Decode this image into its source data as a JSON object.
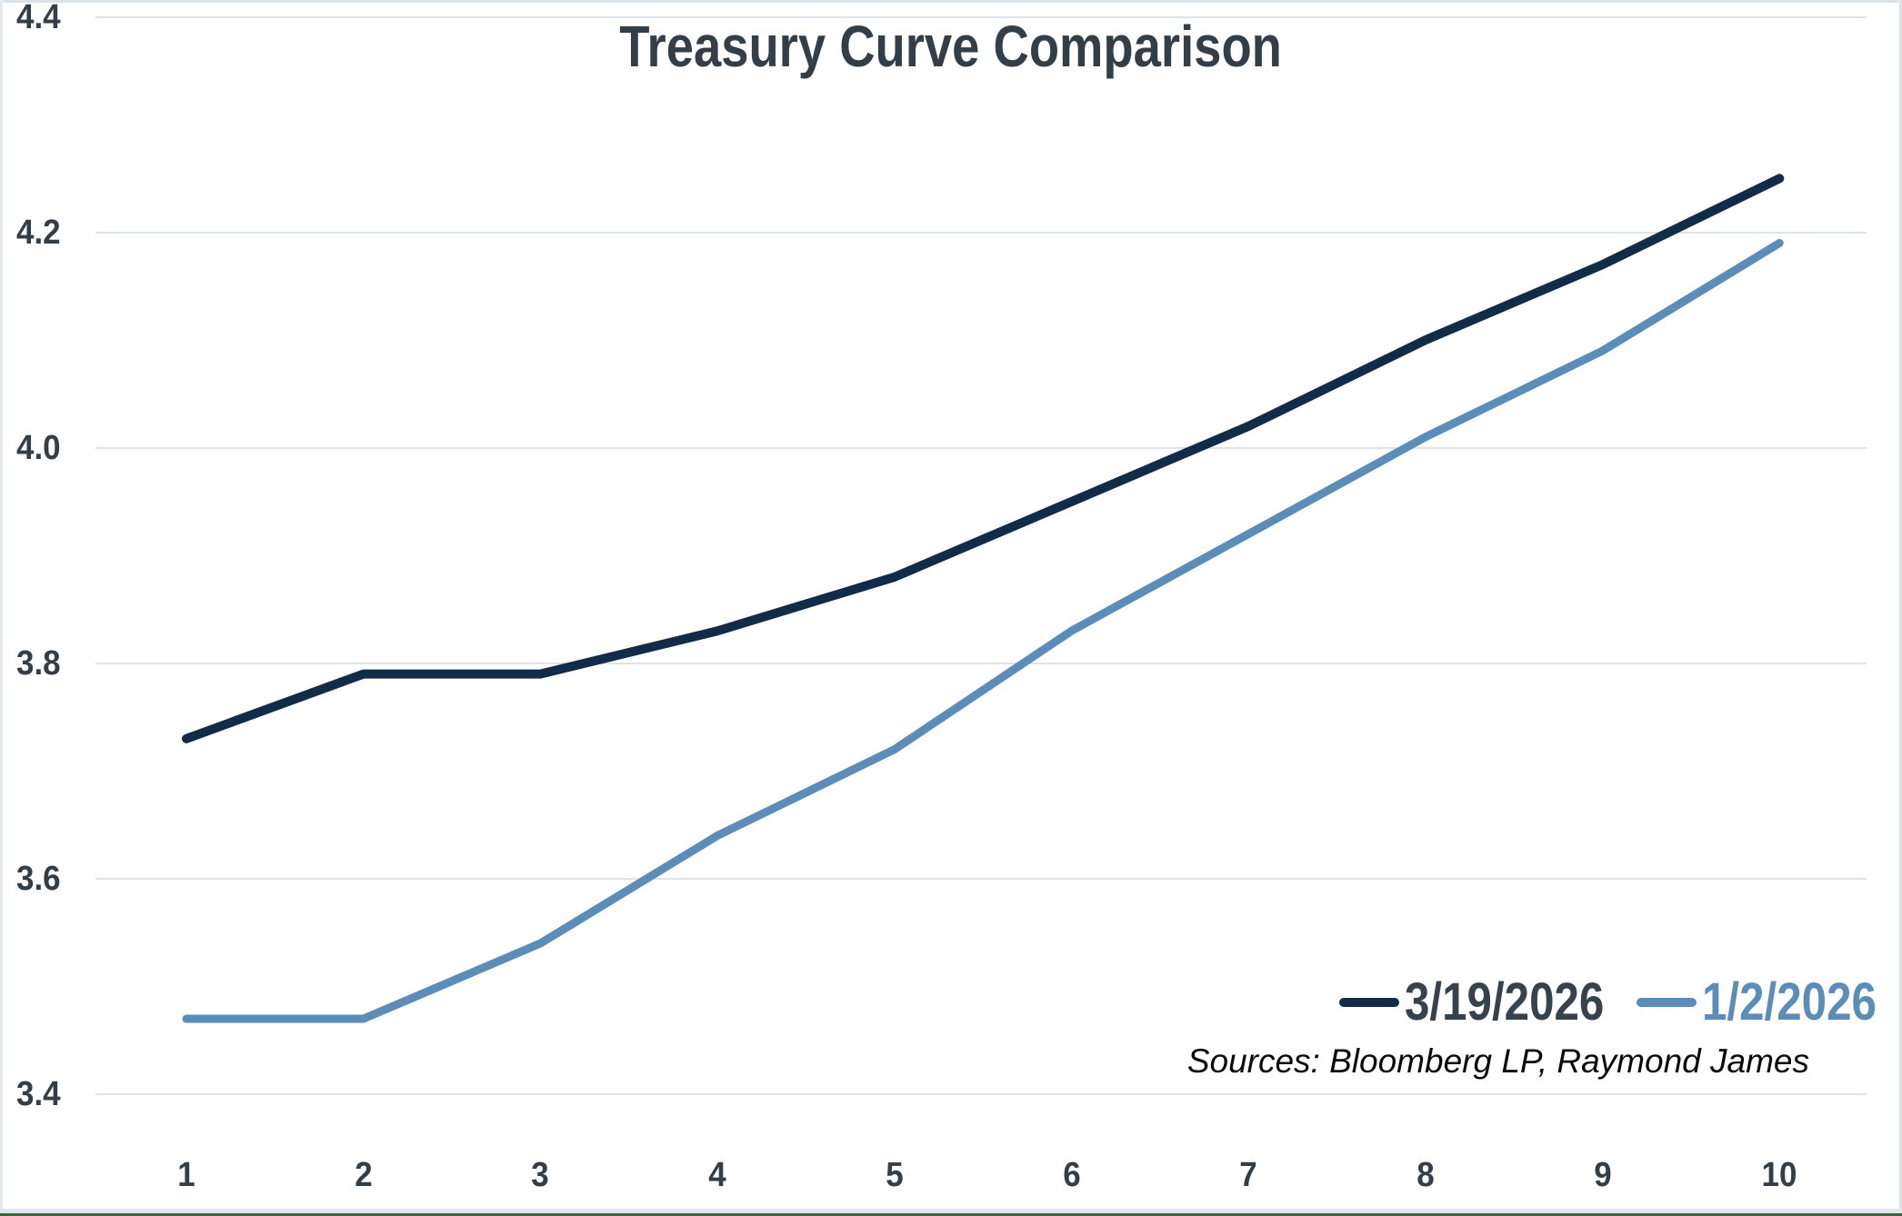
{
  "title": "Treasury Curve Comparison",
  "footer": {
    "sources": "Sources: Bloomberg LP, Raymond James"
  },
  "colors": {
    "background": "#FFFFFF",
    "title_text": "#333E46",
    "axis_text": "#333E46",
    "gridline": "#DDE3E7",
    "frame_border": "#DCE3E7",
    "bottom_accent": "#42603F",
    "series_dark": "#102C48",
    "series_blue": "#5B8DB8",
    "legend_dark_text": "#37424A",
    "legend_blue_text": "#5B8DB8"
  },
  "chart_data": {
    "type": "line",
    "title": "Treasury Curve Comparison",
    "xlabel": "",
    "ylabel": "",
    "categories": [
      "1",
      "2",
      "3",
      "4",
      "5",
      "6",
      "7",
      "8",
      "9",
      "10"
    ],
    "x": [
      1,
      2,
      3,
      4,
      5,
      6,
      7,
      8,
      9,
      10
    ],
    "ylim": [
      3.4,
      4.4
    ],
    "yticks": [
      "3.4",
      "3.6",
      "3.8",
      "4.0",
      "4.2",
      "4.4"
    ],
    "grid": "horizontal-only",
    "legend_position": "bottom-right",
    "series": [
      {
        "name": "3/19/2026",
        "color": "#102C48",
        "text_color": "#37424A",
        "values": [
          3.73,
          3.79,
          3.79,
          3.83,
          3.88,
          3.95,
          4.02,
          4.1,
          4.17,
          4.25
        ]
      },
      {
        "name": "1/2/2026",
        "color": "#5B8DB8",
        "text_color": "#5B8DB8",
        "values": [
          3.47,
          3.47,
          3.54,
          3.64,
          3.72,
          3.83,
          3.92,
          4.01,
          4.09,
          4.19
        ]
      }
    ],
    "annotations": [
      "Sources: Bloomberg LP, Raymond James"
    ]
  }
}
